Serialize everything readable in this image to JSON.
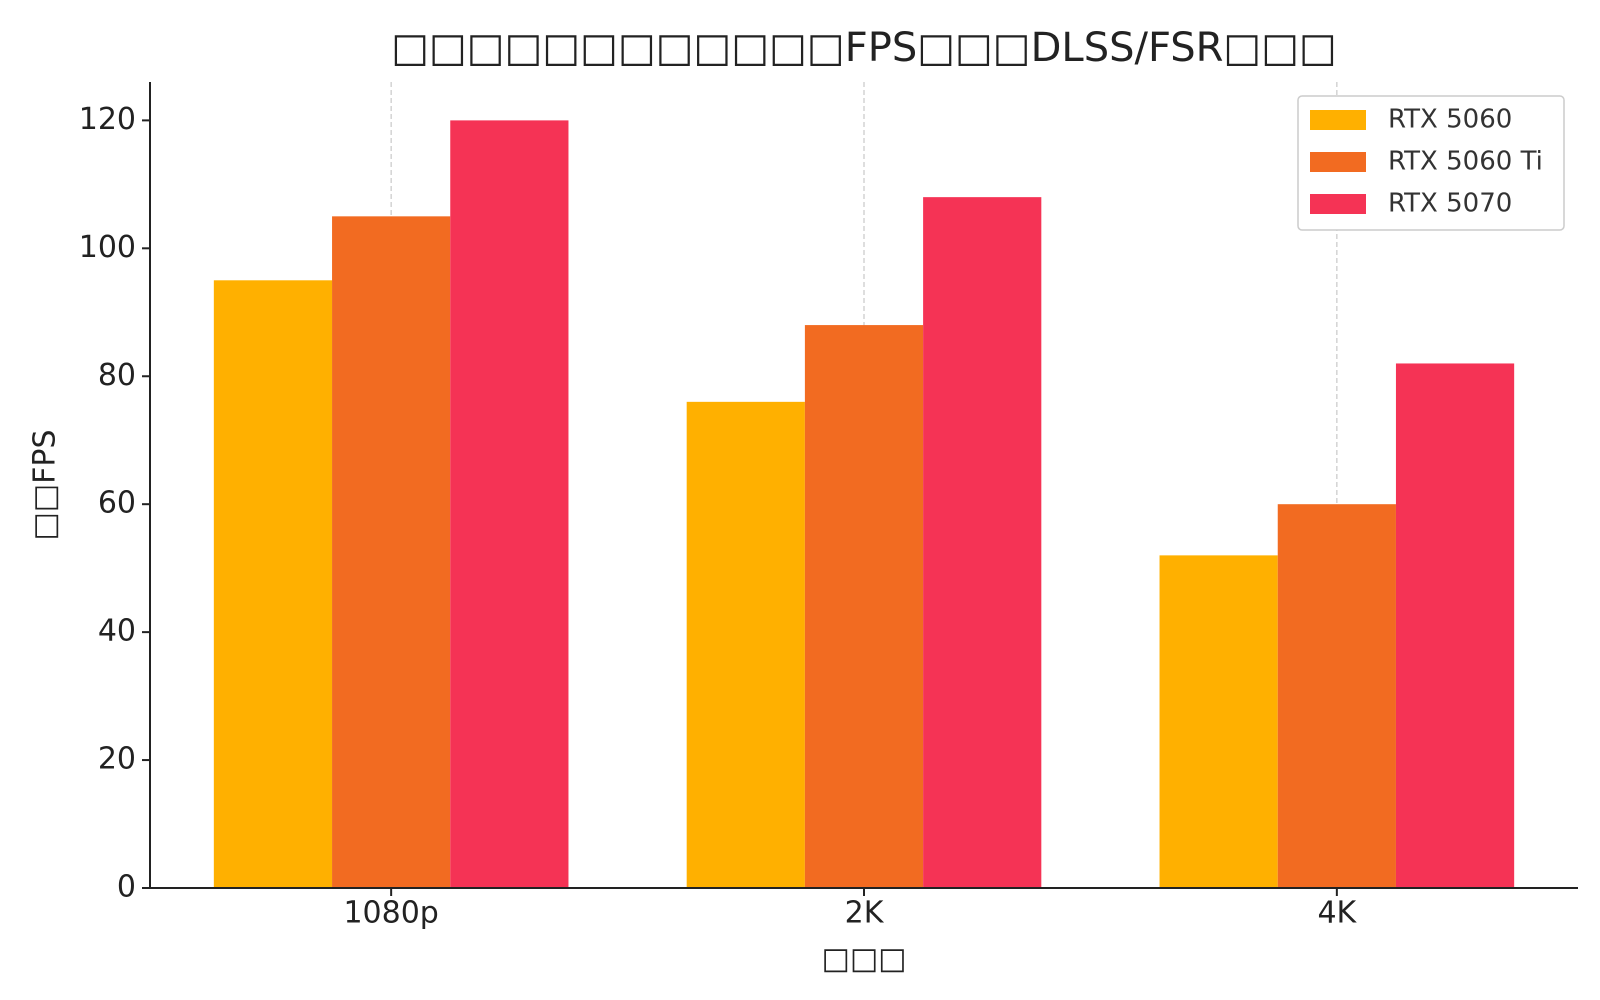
{
  "chart_data": {
    "type": "bar",
    "title": "□□□□□□□□□□□□FPS□□□DLSS/FSR□□□",
    "x_label": "□□□",
    "y_label": "□□FPS",
    "categories": [
      "1080p",
      "2K",
      "4K"
    ],
    "series": [
      {
        "name": "RTX 5060",
        "color": "#FFB000",
        "values": [
          95,
          76,
          52
        ]
      },
      {
        "name": "RTX 5060 Ti",
        "color": "#F26B21",
        "values": [
          105,
          88,
          60
        ]
      },
      {
        "name": "RTX 5070",
        "color": "#F53355",
        "values": [
          120,
          108,
          82
        ]
      }
    ],
    "ylim": [
      0,
      126
    ],
    "yticks": [
      0,
      20,
      40,
      60,
      80,
      100,
      120
    ],
    "grid": "x",
    "legend": "upper-right"
  }
}
